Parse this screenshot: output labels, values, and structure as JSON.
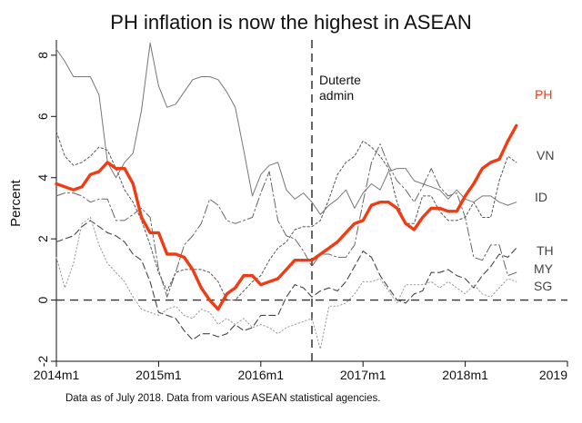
{
  "chart_data": {
    "type": "line",
    "title": "PH inflation is now the highest in ASEAN",
    "ylabel": "Percent",
    "xlabel": "",
    "xlim": [
      2014.0,
      2019.0
    ],
    "ylim": [
      -2,
      8.5
    ],
    "x_ticks": [
      {
        "value": 2014,
        "label": "2014m1"
      },
      {
        "value": 2015,
        "label": "2015m1"
      },
      {
        "value": 2016,
        "label": "2016m1"
      },
      {
        "value": 2017,
        "label": "2017m1"
      },
      {
        "value": 2018,
        "label": "2018m1"
      },
      {
        "value": 2019,
        "label": "2019"
      }
    ],
    "y_ticks": [
      -2,
      0,
      2,
      4,
      6,
      8
    ],
    "zero_line": true,
    "vline": {
      "x": 2016.5,
      "label": [
        "Duterte",
        "admin"
      ]
    },
    "source_note": "Data as of July 2018. Data from various ASEAN statistical agencies.",
    "series": [
      {
        "name": "PH",
        "color": "#f03c15",
        "style": "solid-thick",
        "x": [
          2014.0,
          2014.083,
          2014.167,
          2014.25,
          2014.333,
          2014.417,
          2014.5,
          2014.583,
          2014.667,
          2014.75,
          2014.833,
          2014.917,
          2015.0,
          2015.083,
          2015.167,
          2015.25,
          2015.333,
          2015.417,
          2015.5,
          2015.583,
          2015.667,
          2015.75,
          2015.833,
          2015.917,
          2016.0,
          2016.083,
          2016.167,
          2016.25,
          2016.333,
          2016.417,
          2016.5,
          2016.583,
          2016.667,
          2016.75,
          2016.833,
          2016.917,
          2017.0,
          2017.083,
          2017.167,
          2017.25,
          2017.333,
          2017.417,
          2017.5,
          2017.583,
          2017.667,
          2017.75,
          2017.833,
          2017.917,
          2018.0,
          2018.083,
          2018.167,
          2018.25,
          2018.333,
          2018.417,
          2018.5
        ],
        "values": [
          3.8,
          3.7,
          3.6,
          3.7,
          4.1,
          4.2,
          4.5,
          4.3,
          4.3,
          3.8,
          2.7,
          2.2,
          2.2,
          1.5,
          1.5,
          1.4,
          1.0,
          0.4,
          0.0,
          -0.3,
          0.2,
          0.4,
          0.8,
          0.8,
          0.5,
          0.6,
          0.7,
          1.0,
          1.3,
          1.3,
          1.3,
          1.5,
          1.7,
          1.9,
          2.2,
          2.5,
          2.6,
          3.1,
          3.2,
          3.2,
          3.0,
          2.5,
          2.3,
          2.7,
          3.0,
          3.0,
          2.9,
          2.9,
          3.4,
          3.8,
          4.3,
          4.5,
          4.6,
          5.2,
          5.7
        ]
      },
      {
        "name": "VN",
        "color": "#555555",
        "style": "dotted",
        "x": [
          2014.0,
          2014.083,
          2014.167,
          2014.25,
          2014.333,
          2014.417,
          2014.5,
          2014.583,
          2014.667,
          2014.75,
          2014.833,
          2014.917,
          2015.0,
          2015.083,
          2015.167,
          2015.25,
          2015.333,
          2015.417,
          2015.5,
          2015.583,
          2015.667,
          2015.75,
          2015.833,
          2015.917,
          2016.0,
          2016.083,
          2016.167,
          2016.25,
          2016.333,
          2016.417,
          2016.5,
          2016.583,
          2016.667,
          2016.75,
          2016.833,
          2016.917,
          2017.0,
          2017.083,
          2017.167,
          2017.25,
          2017.333,
          2017.417,
          2017.5,
          2017.583,
          2017.667,
          2017.75,
          2017.833,
          2017.917,
          2018.0,
          2018.083,
          2018.167,
          2018.25,
          2018.333,
          2018.417,
          2018.5
        ],
        "values": [
          5.5,
          4.7,
          4.4,
          4.5,
          4.7,
          5.0,
          4.9,
          4.3,
          3.6,
          3.2,
          2.6,
          1.8,
          0.9,
          0.3,
          0.9,
          1.0,
          1.0,
          1.0,
          0.9,
          0.6,
          0.0,
          0.0,
          0.3,
          0.6,
          0.8,
          1.3,
          1.7,
          1.9,
          2.3,
          2.4,
          2.4,
          2.6,
          3.3,
          4.1,
          4.5,
          4.7,
          5.2,
          5.0,
          4.7,
          4.3,
          3.2,
          2.5,
          2.5,
          3.4,
          3.4,
          2.9,
          2.6,
          2.6,
          2.7,
          3.2,
          2.7,
          2.7,
          3.9,
          4.7,
          4.5
        ]
      },
      {
        "name": "ID",
        "color": "#777777",
        "style": "solid-thin",
        "x": [
          2014.0,
          2014.083,
          2014.167,
          2014.25,
          2014.333,
          2014.417,
          2014.5,
          2014.583,
          2014.667,
          2014.75,
          2014.833,
          2014.917,
          2015.0,
          2015.083,
          2015.167,
          2015.25,
          2015.333,
          2015.417,
          2015.5,
          2015.583,
          2015.667,
          2015.75,
          2015.833,
          2015.917,
          2016.0,
          2016.083,
          2016.167,
          2016.25,
          2016.333,
          2016.417,
          2016.5,
          2016.583,
          2016.667,
          2016.75,
          2016.833,
          2016.917,
          2017.0,
          2017.083,
          2017.167,
          2017.25,
          2017.333,
          2017.417,
          2017.5,
          2017.583,
          2017.667,
          2017.75,
          2017.833,
          2017.917,
          2018.0,
          2018.083,
          2018.167,
          2018.25,
          2018.333,
          2018.417,
          2018.5
        ],
        "values": [
          8.2,
          7.8,
          7.3,
          7.3,
          7.3,
          6.7,
          4.5,
          4.0,
          4.5,
          4.8,
          6.2,
          8.4,
          7.0,
          6.3,
          6.4,
          6.8,
          7.2,
          7.3,
          7.3,
          7.2,
          6.8,
          6.3,
          4.9,
          3.4,
          4.1,
          4.4,
          4.5,
          3.6,
          3.3,
          3.5,
          3.2,
          2.8,
          3.1,
          3.3,
          3.6,
          3.0,
          3.5,
          3.8,
          3.6,
          4.2,
          4.3,
          4.3,
          3.9,
          3.8,
          3.7,
          3.6,
          3.3,
          3.6,
          3.3,
          3.2,
          3.4,
          3.4,
          3.2,
          3.1,
          3.2
        ]
      },
      {
        "name": "TH",
        "color": "#444444",
        "style": "dashed",
        "x": [
          2014.0,
          2014.083,
          2014.167,
          2014.25,
          2014.333,
          2014.417,
          2014.5,
          2014.583,
          2014.667,
          2014.75,
          2014.833,
          2014.917,
          2015.0,
          2015.083,
          2015.167,
          2015.25,
          2015.333,
          2015.417,
          2015.5,
          2015.583,
          2015.667,
          2015.75,
          2015.833,
          2015.917,
          2016.0,
          2016.083,
          2016.167,
          2016.25,
          2016.333,
          2016.417,
          2016.5,
          2016.583,
          2016.667,
          2016.75,
          2016.833,
          2016.917,
          2017.0,
          2017.083,
          2017.167,
          2017.25,
          2017.333,
          2017.417,
          2017.5,
          2017.583,
          2017.667,
          2017.75,
          2017.833,
          2017.917,
          2018.0,
          2018.083,
          2018.167,
          2018.25,
          2018.333,
          2018.417,
          2018.5
        ],
        "values": [
          1.9,
          2.0,
          2.1,
          2.4,
          2.6,
          2.4,
          2.2,
          2.1,
          1.9,
          1.5,
          1.3,
          0.6,
          -0.4,
          -0.5,
          -0.6,
          -1.0,
          -1.3,
          -1.1,
          -1.1,
          -1.2,
          -1.1,
          -0.8,
          -1.0,
          -0.9,
          -0.5,
          -0.5,
          -0.5,
          0.1,
          0.5,
          0.4,
          0.1,
          0.3,
          0.4,
          0.3,
          0.6,
          1.1,
          1.6,
          1.4,
          0.8,
          0.4,
          0.0,
          -0.1,
          0.2,
          0.3,
          0.9,
          0.9,
          1.0,
          0.8,
          0.7,
          0.4,
          0.8,
          1.1,
          1.5,
          1.4,
          1.7
        ]
      },
      {
        "name": "MY",
        "color": "#666666",
        "style": "dashdot",
        "x": [
          2014.0,
          2014.083,
          2014.167,
          2014.25,
          2014.333,
          2014.417,
          2014.5,
          2014.583,
          2014.667,
          2014.75,
          2014.833,
          2014.917,
          2015.0,
          2015.083,
          2015.167,
          2015.25,
          2015.333,
          2015.417,
          2015.5,
          2015.583,
          2015.667,
          2015.75,
          2015.833,
          2015.917,
          2016.0,
          2016.083,
          2016.167,
          2016.25,
          2016.333,
          2016.417,
          2016.5,
          2016.583,
          2016.667,
          2016.75,
          2016.833,
          2016.917,
          2017.0,
          2017.083,
          2017.167,
          2017.25,
          2017.333,
          2017.417,
          2017.5,
          2017.583,
          2017.667,
          2017.75,
          2017.833,
          2017.917,
          2018.0,
          2018.083,
          2018.167,
          2018.25,
          2018.333,
          2018.417,
          2018.5
        ],
        "values": [
          3.4,
          3.5,
          3.5,
          3.4,
          3.2,
          3.3,
          3.3,
          2.6,
          2.6,
          2.8,
          3.0,
          2.7,
          1.0,
          0.1,
          0.9,
          1.8,
          2.1,
          2.5,
          3.3,
          3.1,
          2.6,
          2.5,
          2.6,
          2.7,
          3.5,
          4.2,
          2.6,
          2.1,
          2.0,
          1.6,
          1.1,
          1.5,
          1.5,
          1.4,
          1.4,
          1.8,
          3.2,
          4.5,
          5.1,
          4.4,
          3.9,
          3.6,
          3.2,
          3.7,
          4.3,
          3.7,
          3.4,
          3.5,
          2.7,
          1.4,
          1.3,
          1.8,
          1.8,
          0.8,
          0.9
        ]
      },
      {
        "name": "SG",
        "color": "#999999",
        "style": "dotted-fine",
        "x": [
          2014.0,
          2014.083,
          2014.167,
          2014.25,
          2014.333,
          2014.417,
          2014.5,
          2014.583,
          2014.667,
          2014.75,
          2014.833,
          2014.917,
          2015.0,
          2015.083,
          2015.167,
          2015.25,
          2015.333,
          2015.417,
          2015.5,
          2015.583,
          2015.667,
          2015.75,
          2015.833,
          2015.917,
          2016.0,
          2016.083,
          2016.167,
          2016.25,
          2016.333,
          2016.417,
          2016.5,
          2016.583,
          2016.667,
          2016.75,
          2016.833,
          2016.917,
          2017.0,
          2017.083,
          2017.167,
          2017.25,
          2017.333,
          2017.417,
          2017.5,
          2017.583,
          2017.667,
          2017.75,
          2017.833,
          2017.917,
          2018.0,
          2018.083,
          2018.167,
          2018.25,
          2018.333,
          2018.417,
          2018.5
        ],
        "values": [
          1.4,
          0.4,
          1.2,
          2.5,
          2.7,
          1.8,
          1.2,
          0.9,
          0.6,
          0.1,
          -0.3,
          -0.4,
          -0.5,
          -0.3,
          -0.2,
          -0.5,
          -0.6,
          -0.3,
          -0.4,
          -0.8,
          -0.6,
          -0.8,
          -0.6,
          -0.9,
          -0.8,
          -0.9,
          -1.1,
          -0.9,
          -0.8,
          -0.7,
          -0.6,
          -1.6,
          -0.2,
          -0.2,
          -0.1,
          0.2,
          0.6,
          0.6,
          0.7,
          0.3,
          -0.1,
          0.5,
          0.5,
          0.5,
          0.6,
          0.4,
          0.6,
          0.4,
          0.2,
          0.5,
          0.2,
          0.1,
          0.4,
          0.7,
          0.6
        ]
      }
    ]
  }
}
